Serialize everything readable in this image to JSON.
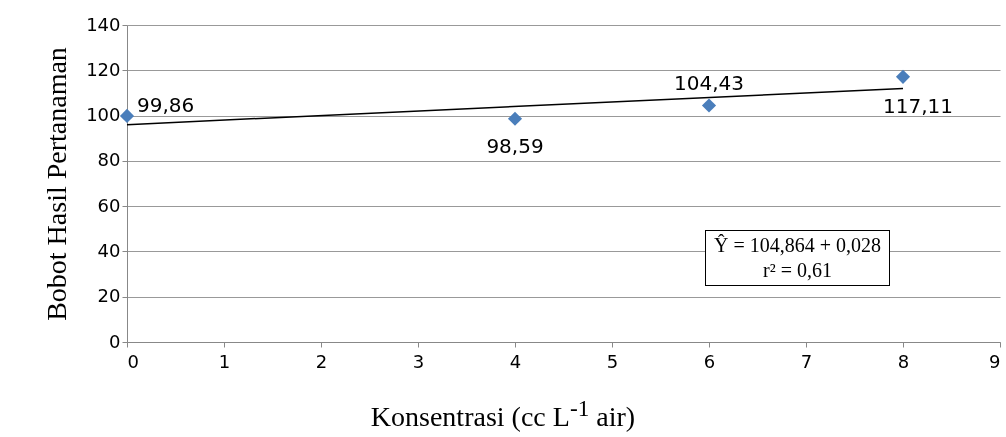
{
  "chart_data": {
    "type": "scatter",
    "xlabel": "Konsentrasi (cc L$^{-1}$ air)",
    "ylabel": "Bobot Hasil Pertanaman",
    "xlim": [
      0,
      9
    ],
    "xticks": [
      0,
      1,
      2,
      3,
      4,
      5,
      6,
      7,
      8,
      9
    ],
    "ylim": [
      0,
      140
    ],
    "yticks": [
      0,
      20,
      40,
      60,
      80,
      100,
      120,
      140
    ],
    "grid": "y",
    "series": [
      {
        "marker": "diamond",
        "x": [
          0,
          4,
          6,
          8
        ],
        "values": [
          99.86,
          98.59,
          104.43,
          117.11
        ],
        "value_labels": [
          "99,86",
          "98,59",
          "104,43",
          "117,11"
        ],
        "color": "#4a7ebb"
      },
      {
        "type": "line",
        "x": [
          0,
          8
        ],
        "values": [
          96,
          112
        ],
        "color": "#000000"
      }
    ],
    "annotations": [
      "Ŷ = 104,864 + 0,028",
      "r² = 0,61"
    ]
  }
}
